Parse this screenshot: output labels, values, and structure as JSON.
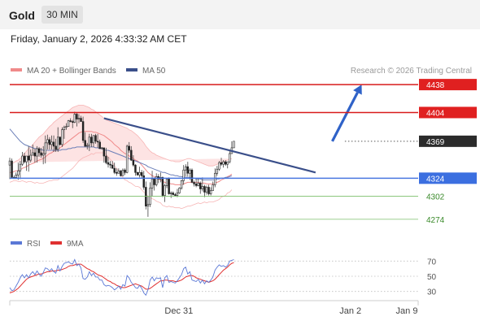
{
  "header": {
    "title": "Gold",
    "timeframe": "30 MIN",
    "datetime": "Friday, January 2, 2026 4:33:32 AM CET"
  },
  "chart_data": [
    {
      "type": "candlestick",
      "title": "",
      "legend": [
        {
          "name": "MA 20 + Bollinger Bands",
          "color": "#f08a8a"
        },
        {
          "name": "MA 50",
          "color": "#3a4f8a"
        }
      ],
      "watermark": "Research © 2026 Trading Central",
      "y_range": [
        4262,
        4448
      ],
      "x_range": [
        0,
        195
      ],
      "candles": [
        [
          4340,
          4323,
          4349,
          4345
        ],
        [
          4345,
          4324,
          4348,
          4325
        ],
        [
          4325,
          4323,
          4327,
          4325
        ],
        [
          4325,
          4323,
          4331,
          4328
        ],
        [
          4328,
          4322,
          4343,
          4333
        ],
        [
          4333,
          4323,
          4345,
          4341
        ],
        [
          4341,
          4339,
          4356,
          4351
        ],
        [
          4351,
          4342,
          4355,
          4344
        ],
        [
          4344,
          4333,
          4351,
          4351
        ],
        [
          4351,
          4332,
          4363,
          4346
        ],
        [
          4346,
          4343,
          4359,
          4352
        ],
        [
          4352,
          4352,
          4365,
          4355
        ],
        [
          4355,
          4343,
          4360,
          4351
        ],
        [
          4351,
          4343,
          4363,
          4360
        ],
        [
          4360,
          4350,
          4362,
          4355
        ],
        [
          4355,
          4349,
          4361,
          4352
        ],
        [
          4352,
          4341,
          4363,
          4354
        ],
        [
          4354,
          4342,
          4376,
          4367
        ],
        [
          4367,
          4359,
          4377,
          4371
        ],
        [
          4371,
          4359,
          4374,
          4365
        ],
        [
          4365,
          4359,
          4376,
          4368
        ],
        [
          4368,
          4356,
          4376,
          4363
        ],
        [
          4363,
          4356,
          4372,
          4359
        ],
        [
          4359,
          4356,
          4386,
          4374
        ],
        [
          4374,
          4364,
          4375,
          4365
        ],
        [
          4365,
          4362,
          4386,
          4383
        ],
        [
          4383,
          4372,
          4388,
          4386
        ],
        [
          4386,
          4383,
          4391,
          4387
        ],
        [
          4387,
          4387,
          4395,
          4394
        ],
        [
          4394,
          4392,
          4397,
          4393
        ],
        [
          4393,
          4385,
          4395,
          4392
        ],
        [
          4392,
          4391,
          4405,
          4402
        ],
        [
          4402,
          4387,
          4404,
          4396
        ],
        [
          4396,
          4391,
          4402,
          4397
        ],
        [
          4397,
          4393,
          4400,
          4393
        ],
        [
          4393,
          4367,
          4399,
          4370
        ],
        [
          4370,
          4362,
          4380,
          4363
        ],
        [
          4363,
          4359,
          4367,
          4364
        ],
        [
          4364,
          4357,
          4378,
          4374
        ],
        [
          4374,
          4362,
          4378,
          4367
        ],
        [
          4367,
          4362,
          4376,
          4376
        ],
        [
          4376,
          4366,
          4378,
          4369
        ],
        [
          4369,
          4361,
          4378,
          4368
        ],
        [
          4368,
          4360,
          4371,
          4360
        ],
        [
          4360,
          4359,
          4362,
          4361
        ],
        [
          4361,
          4343,
          4361,
          4351
        ],
        [
          4351,
          4341,
          4361,
          4343
        ],
        [
          4343,
          4337,
          4350,
          4341
        ],
        [
          4341,
          4336,
          4345,
          4340
        ],
        [
          4340,
          4336,
          4345,
          4336
        ],
        [
          4336,
          4329,
          4343,
          4331
        ],
        [
          4331,
          4327,
          4336,
          4330
        ],
        [
          4330,
          4330,
          4336,
          4333
        ],
        [
          4333,
          4326,
          4334,
          4327
        ],
        [
          4327,
          4327,
          4336,
          4334
        ],
        [
          4334,
          4328,
          4336,
          4331
        ],
        [
          4331,
          4330,
          4365,
          4363
        ],
        [
          4363,
          4355,
          4368,
          4358
        ],
        [
          4358,
          4345,
          4363,
          4346
        ],
        [
          4346,
          4338,
          4352,
          4340
        ],
        [
          4340,
          4327,
          4341,
          4331
        ],
        [
          4331,
          4327,
          4332,
          4328
        ],
        [
          4328,
          4325,
          4338,
          4331
        ],
        [
          4331,
          4324,
          4334,
          4327
        ],
        [
          4327,
          4310,
          4333,
          4313
        ],
        [
          4313,
          4286,
          4320,
          4290
        ],
        [
          4290,
          4277,
          4302,
          4292
        ],
        [
          4292,
          4289,
          4319,
          4312
        ],
        [
          4312,
          4302,
          4333,
          4323
        ],
        [
          4323,
          4309,
          4325,
          4316
        ],
        [
          4316,
          4314,
          4330,
          4326
        ],
        [
          4326,
          4318,
          4329,
          4323
        ],
        [
          4323,
          4319,
          4331,
          4325
        ],
        [
          4325,
          4301,
          4326,
          4303
        ],
        [
          4303,
          4295,
          4317,
          4315
        ],
        [
          4315,
          4312,
          4324,
          4323
        ],
        [
          4323,
          4304,
          4325,
          4305
        ],
        [
          4305,
          4300,
          4308,
          4306
        ],
        [
          4306,
          4303,
          4308,
          4304
        ],
        [
          4304,
          4302,
          4306,
          4303
        ],
        [
          4303,
          4301,
          4311,
          4306
        ],
        [
          4306,
          4305,
          4313,
          4312
        ],
        [
          4312,
          4310,
          4322,
          4321
        ],
        [
          4321,
          4316,
          4340,
          4334
        ],
        [
          4334,
          4326,
          4341,
          4338
        ],
        [
          4338,
          4326,
          4344,
          4330
        ],
        [
          4330,
          4322,
          4336,
          4334
        ],
        [
          4334,
          4318,
          4336,
          4319
        ],
        [
          4319,
          4314,
          4321,
          4317
        ],
        [
          4317,
          4313,
          4324,
          4315
        ],
        [
          4315,
          4314,
          4324,
          4318
        ],
        [
          4318,
          4305,
          4320,
          4311
        ],
        [
          4311,
          4308,
          4325,
          4314
        ],
        [
          4314,
          4301,
          4316,
          4307
        ],
        [
          4307,
          4304,
          4315,
          4313
        ],
        [
          4313,
          4303,
          4316,
          4305
        ],
        [
          4305,
          4303,
          4313,
          4309
        ],
        [
          4309,
          4309,
          4320,
          4316
        ],
        [
          4316,
          4313,
          4336,
          4330
        ],
        [
          4330,
          4327,
          4339,
          4335
        ],
        [
          4335,
          4333,
          4345,
          4343
        ],
        [
          4343,
          4339,
          4349,
          4341
        ],
        [
          4341,
          4337,
          4346,
          4344
        ],
        [
          4344,
          4339,
          4346,
          4341
        ],
        [
          4341,
          4336,
          4344,
          4344
        ],
        [
          4344,
          4342,
          4359,
          4354
        ],
        [
          4354,
          4354,
          4369,
          4361
        ],
        [
          4361,
          4361,
          4369,
          4369
        ]
      ],
      "ma20": [
        4331,
        4331,
        4332,
        4333,
        4333,
        4334,
        4336,
        4337,
        4338,
        4340,
        4341,
        4342,
        4343,
        4345,
        4346,
        4347,
        4348,
        4350,
        4352,
        4354,
        4355,
        4357,
        4358,
        4359,
        4361,
        4363,
        4365,
        4367,
        4369,
        4371,
        4373,
        4375,
        4377,
        4379,
        4380,
        4381,
        4381,
        4381,
        4381,
        4381,
        4380,
        4380,
        4379,
        4378,
        4377,
        4376,
        4374,
        4372,
        4370,
        4368,
        4365,
        4363,
        4361,
        4358,
        4356,
        4354,
        4353,
        4351,
        4350,
        4348,
        4346,
        4345,
        4343,
        4340,
        4337,
        4334,
        4331,
        4329,
        4327,
        4326,
        4324,
        4323,
        4322,
        4320,
        4319,
        4318,
        4318,
        4317,
        4317,
        4316,
        4316,
        4316,
        4316,
        4317,
        4318,
        4319,
        4319,
        4319,
        4319,
        4319,
        4319,
        4318,
        4318,
        4318,
        4317,
        4317,
        4317,
        4317,
        4318,
        4319,
        4320,
        4322,
        4323,
        4324,
        4326,
        4327,
        4329
      ],
      "ma50": [
        4384,
        4381,
        4378,
        4375,
        4372,
        4369,
        4367,
        4365,
        4364,
        4363,
        4362,
        4361,
        4360,
        4360,
        4359,
        4359,
        4358,
        4358,
        4358,
        4358,
        4358,
        4358,
        4358,
        4358,
        4358,
        4359,
        4359,
        4359,
        4360,
        4360,
        4361,
        4361,
        4362,
        4362,
        4362,
        4362,
        4362,
        4362,
        4362,
        4362,
        4362,
        4361,
        4361,
        4360,
        4360,
        4359,
        4358,
        4358,
        4357,
        4356,
        4355,
        4354,
        4353,
        4352,
        4351,
        4350,
        4349,
        4348,
        4347,
        4346,
        4345,
        4344,
        4343,
        4342,
        4341,
        4340,
        4338,
        4337,
        4336,
        4335,
        4334,
        4333,
        4332,
        4331,
        4331,
        4330,
        4329,
        4328,
        4328,
        4327,
        4327,
        4326,
        4326,
        4325,
        4325,
        4325,
        4325,
        4324,
        4324,
        4323,
        4323,
        4323,
        4322,
        4322,
        4322,
        4322,
        4322,
        4322,
        4322,
        4323,
        4323,
        4324,
        4324,
        4325,
        4325,
        4326,
        4327
      ],
      "bb_upper": [
        4343,
        4342,
        4343,
        4345,
        4346,
        4348,
        4351,
        4354,
        4357,
        4360,
        4362,
        4365,
        4368,
        4371,
        4374,
        4376,
        4378,
        4381,
        4384,
        4387,
        4389,
        4392,
        4394,
        4396,
        4398,
        4400,
        4402,
        4404,
        4406,
        4408,
        4410,
        4411,
        4412,
        4413,
        4413,
        4413,
        4412,
        4411,
        4410,
        4408,
        4407,
        4405,
        4403,
        4401,
        4399,
        4397,
        4395,
        4394,
        4393,
        4392,
        4391,
        4390,
        4389,
        4388,
        4387,
        4386,
        4385,
        4383,
        4382,
        4380,
        4378,
        4376,
        4373,
        4370,
        4367,
        4363,
        4360,
        4357,
        4355,
        4354,
        4352,
        4351,
        4350,
        4349,
        4348,
        4347,
        4346,
        4345,
        4345,
        4344,
        4344,
        4344,
        4345,
        4346,
        4347,
        4348,
        4348,
        4347,
        4346,
        4345,
        4344,
        4343,
        4342,
        4341,
        4340,
        4339,
        4339,
        4339,
        4340,
        4341,
        4342,
        4343,
        4344,
        4345,
        4346,
        4347,
        4348
      ],
      "bb_lower": [
        4319,
        4320,
        4321,
        4321,
        4320,
        4320,
        4321,
        4320,
        4319,
        4320,
        4320,
        4319,
        4318,
        4319,
        4318,
        4318,
        4318,
        4319,
        4320,
        4321,
        4321,
        4322,
        4322,
        4322,
        4324,
        4326,
        4328,
        4330,
        4332,
        4334,
        4336,
        4339,
        4342,
        4345,
        4347,
        4349,
        4350,
        4351,
        4352,
        4354,
        4353,
        4355,
        4355,
        4355,
        4355,
        4355,
        4353,
        4350,
        4347,
        4344,
        4339,
        4336,
        4333,
        4328,
        4325,
        4322,
        4321,
        4319,
        4318,
        4316,
        4314,
        4314,
        4313,
        4310,
        4307,
        4305,
        4302,
        4301,
        4299,
        4298,
        4296,
        4295,
        4294,
        4291,
        4290,
        4289,
        4290,
        4289,
        4289,
        4288,
        4288,
        4288,
        4287,
        4288,
        4289,
        4290,
        4290,
        4291,
        4292,
        4293,
        4294,
        4293,
        4294,
        4295,
        4294,
        4295,
        4295,
        4295,
        4296,
        4297,
        4298,
        4301,
        4302,
        4303,
        4306,
        4307,
        4310
      ],
      "horizontal_levels": [
        {
          "label": "4438",
          "value": 4438,
          "role": "resistance"
        },
        {
          "label": "4404",
          "value": 4404,
          "role": "resistance"
        },
        {
          "label": "4369",
          "value": 4369,
          "role": "last price"
        },
        {
          "label": "4324",
          "value": 4324,
          "role": "pivot"
        },
        {
          "label": "4302",
          "value": 4302,
          "role": "support"
        },
        {
          "label": "4274",
          "value": 4274,
          "role": "support"
        }
      ],
      "trendline": {
        "from": [
          45,
          4397
        ],
        "to": [
          146,
          4331
        ]
      },
      "forecast_arrow": {
        "from": [
          154,
          4369
        ],
        "to": [
          168,
          4438
        ]
      },
      "price_dotted_from_x": 160
    },
    {
      "type": "line",
      "title": "",
      "legend": [
        {
          "name": "RSI",
          "color": "#5b78d6"
        },
        {
          "name": "9MA",
          "color": "#e03030"
        }
      ],
      "y_ticks": [
        "70",
        "50",
        "30"
      ],
      "y_range": [
        20,
        80
      ],
      "x_ticks": [
        {
          "label": "Dec 31",
          "x": 69
        },
        {
          "label": "Jan 2",
          "x": 139
        },
        {
          "label": "Jan 9",
          "x": 162
        }
      ],
      "rsi": [
        35,
        31,
        32,
        37,
        42,
        48,
        52,
        48,
        52,
        48,
        53,
        56,
        52,
        57,
        53,
        50,
        55,
        61,
        60,
        57,
        60,
        56,
        54,
        64,
        57,
        63,
        67,
        68,
        69,
        67,
        66,
        72,
        64,
        66,
        61,
        47,
        46,
        49,
        56,
        51,
        54,
        49,
        49,
        45,
        45,
        39,
        37,
        38,
        37,
        35,
        32,
        34,
        37,
        33,
        39,
        37,
        51,
        48,
        42,
        39,
        35,
        34,
        38,
        34,
        28,
        25,
        32,
        45,
        49,
        44,
        48,
        47,
        48,
        35,
        48,
        51,
        42,
        43,
        42,
        41,
        44,
        48,
        52,
        60,
        62,
        53,
        56,
        45,
        44,
        43,
        46,
        41,
        45,
        40,
        44,
        42,
        45,
        49,
        58,
        62,
        65,
        63,
        64,
        62,
        64,
        70,
        71,
        72
      ],
      "ma9": [
        28,
        29,
        30,
        32,
        34,
        37,
        40,
        43,
        46,
        48,
        49,
        50,
        51,
        52,
        53,
        53,
        54,
        55,
        56,
        56,
        57,
        57,
        57,
        58,
        58,
        59,
        60,
        61,
        63,
        64,
        64,
        65,
        66,
        66,
        66,
        64,
        62,
        60,
        59,
        57,
        56,
        54,
        52,
        51,
        50,
        48,
        46,
        44,
        43,
        41,
        40,
        38,
        37,
        36,
        35,
        35,
        36,
        37,
        38,
        39,
        40,
        39,
        38,
        37,
        35,
        33,
        33,
        34,
        36,
        38,
        40,
        42,
        44,
        44,
        45,
        45,
        44,
        44,
        44,
        43,
        43,
        44,
        45,
        47,
        49,
        50,
        51,
        51,
        50,
        48,
        47,
        46,
        45,
        44,
        43,
        42,
        43,
        44,
        46,
        49,
        52,
        55,
        58,
        60,
        62,
        65,
        67,
        68
      ]
    }
  ]
}
